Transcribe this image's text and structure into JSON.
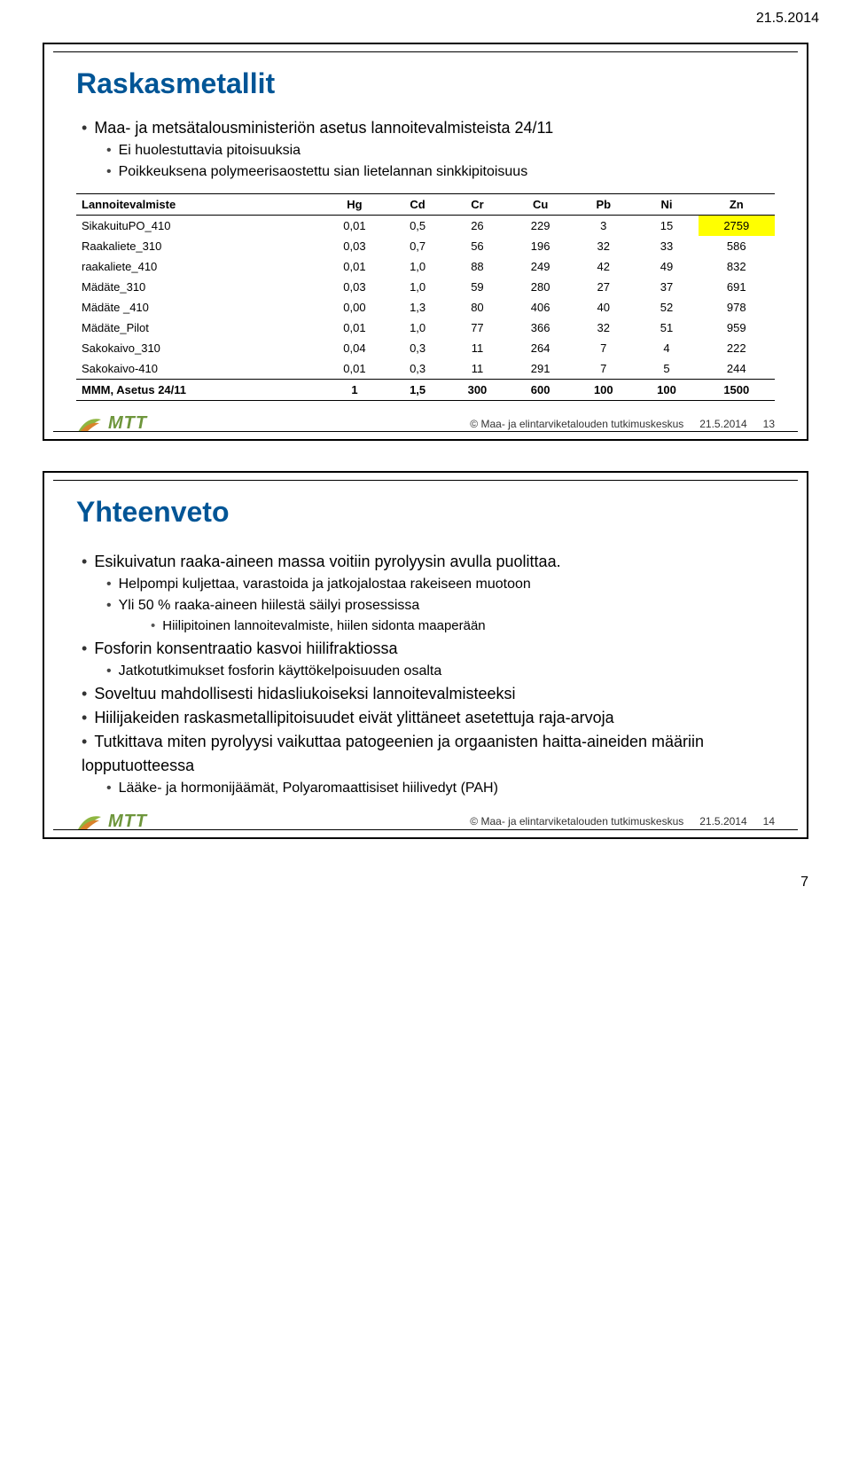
{
  "page_header_date": "21.5.2014",
  "page_number": "7",
  "footer": {
    "copyright": "© Maa- ja elintarviketalouden tutkimuskeskus",
    "date": "21.5.2014",
    "logo_text": "MTT"
  },
  "slide1": {
    "number": "13",
    "title": "Raskasmetallit",
    "bullets": {
      "top1": "Maa- ja metsätalousministeriön asetus lannoitevalmisteista 24/11",
      "sub1": "Ei huolestuttavia pitoisuuksia",
      "sub2": "Poikkeuksena polymeerisaostettu sian lietelannan sinkkipitoisuus"
    },
    "table": {
      "columns": [
        "Lannoitevalmiste",
        "Hg",
        "Cd",
        "Cr",
        "Cu",
        "Pb",
        "Ni",
        "Zn"
      ],
      "col_align": [
        "left",
        "center",
        "center",
        "center",
        "center",
        "center",
        "center",
        "center"
      ],
      "highlight_cells": [
        [
          0,
          7
        ]
      ],
      "rows": [
        [
          "SikakuituPO_410",
          "0,01",
          "0,5",
          "26",
          "229",
          "3",
          "15",
          "2759"
        ],
        [
          "Raakaliete_310",
          "0,03",
          "0,7",
          "56",
          "196",
          "32",
          "33",
          "586"
        ],
        [
          "raakaliete_410",
          "0,01",
          "1,0",
          "88",
          "249",
          "42",
          "49",
          "832"
        ],
        [
          "Mädäte_310",
          "0,03",
          "1,0",
          "59",
          "280",
          "27",
          "37",
          "691"
        ],
        [
          "Mädäte _410",
          "0,00",
          "1,3",
          "80",
          "406",
          "40",
          "52",
          "978"
        ],
        [
          "Mädäte_Pilot",
          "0,01",
          "1,0",
          "77",
          "366",
          "32",
          "51",
          "959"
        ],
        [
          "Sakokaivo_310",
          "0,04",
          "0,3",
          "11",
          "264",
          "7",
          "4",
          "222"
        ],
        [
          "Sakokaivo-410",
          "0,01",
          "0,3",
          "11",
          "291",
          "7",
          "5",
          "244"
        ],
        [
          "MMM, Asetus 24/11",
          "1",
          "1,5",
          "300",
          "600",
          "100",
          "100",
          "1500"
        ]
      ]
    }
  },
  "slide2": {
    "number": "14",
    "title": "Yhteenveto",
    "items": {
      "t1": "Esikuivatun raaka-aineen massa voitiin pyrolyysin avulla puolittaa.",
      "t1s1": "Helpompi kuljettaa, varastoida ja jatkojalostaa rakeiseen muotoon",
      "t1s2": "Yli 50 % raaka-aineen hiilestä säilyi prosessissa",
      "t1s2s1": "Hiilipitoinen lannoitevalmiste, hiilen sidonta maaperään",
      "t2": "Fosforin konsentraatio kasvoi hiilifraktiossa",
      "t2s1": "Jatkotutkimukset fosforin käyttökelpoisuuden osalta",
      "t3": "Soveltuu mahdollisesti hidasliukoiseksi lannoitevalmisteeksi",
      "t4": "Hiilijakeiden raskasmetallipitoisuudet eivät ylittäneet asetettuja raja-arvoja",
      "t5": "Tutkittava miten pyrolyysi vaikuttaa patogeenien ja orgaanisten haitta-aineiden määriin lopputuotteessa",
      "t5s1": "Lääke- ja hormonijäämät, Polyaromaattisiset hiilivedyt (PAH)"
    }
  },
  "colors": {
    "title": "#005596",
    "logo": "#6E963C",
    "highlight": "#ffff00",
    "border": "#000000",
    "text": "#000000"
  }
}
